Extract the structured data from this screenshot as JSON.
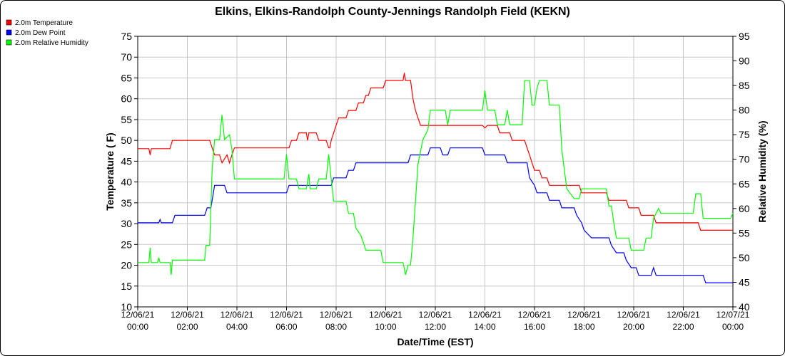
{
  "chart_data": {
    "type": "line",
    "title": "Elkins, Elkins-Randolph County-Jennings Randolph Field (KEKN)",
    "xlabel": "Date/Time (EST)",
    "ylabel_left": "Temperature ( F)",
    "ylabel_right": "Relative Humidity (%)",
    "ylim_left": [
      10,
      75
    ],
    "ylim_right": [
      40,
      95
    ],
    "yticks_left": [
      "10",
      "15",
      "20",
      "25",
      "30",
      "35",
      "40",
      "45",
      "50",
      "55",
      "60",
      "65",
      "70",
      "75"
    ],
    "yticks_right": [
      "40",
      "45",
      "50",
      "55",
      "60",
      "65",
      "70",
      "75",
      "80",
      "85",
      "90",
      "95"
    ],
    "x_range_hours": [
      0,
      24
    ],
    "x_ticks": [
      {
        "hour": 0,
        "date": "12/06/21",
        "time": "00:00"
      },
      {
        "hour": 2,
        "date": "12/06/21",
        "time": "02:00"
      },
      {
        "hour": 4,
        "date": "12/06/21",
        "time": "04:00"
      },
      {
        "hour": 6,
        "date": "12/06/21",
        "time": "06:00"
      },
      {
        "hour": 8,
        "date": "12/06/21",
        "time": "08:00"
      },
      {
        "hour": 10,
        "date": "12/06/21",
        "time": "10:00"
      },
      {
        "hour": 12,
        "date": "12/06/21",
        "time": "12:00"
      },
      {
        "hour": 14,
        "date": "12/06/21",
        "time": "14:00"
      },
      {
        "hour": 16,
        "date": "12/06/21",
        "time": "16:00"
      },
      {
        "hour": 18,
        "date": "12/06/21",
        "time": "18:00"
      },
      {
        "hour": 20,
        "date": "12/06/21",
        "time": "20:00"
      },
      {
        "hour": 22,
        "date": "12/06/21",
        "time": "22:00"
      },
      {
        "hour": 24,
        "date": "12/07/21",
        "time": "00:00"
      }
    ],
    "grid": true,
    "legend_position": "top-left",
    "series": [
      {
        "name": "2.0m Temperature",
        "color": "#ff0000",
        "axis": "left",
        "points": [
          [
            0,
            48
          ],
          [
            0.45,
            48
          ],
          [
            0.5,
            46.5
          ],
          [
            0.55,
            48
          ],
          [
            1.3,
            48
          ],
          [
            1.4,
            50
          ],
          [
            2.9,
            50
          ],
          [
            3.1,
            46.5
          ],
          [
            3.3,
            46.5
          ],
          [
            3.4,
            44.6
          ],
          [
            3.6,
            46.5
          ],
          [
            3.7,
            44.6
          ],
          [
            3.8,
            46.5
          ],
          [
            3.9,
            48.2
          ],
          [
            6.1,
            48.2
          ],
          [
            6.2,
            50
          ],
          [
            6.4,
            50
          ],
          [
            6.5,
            51.8
          ],
          [
            6.8,
            51.8
          ],
          [
            6.85,
            50
          ],
          [
            6.9,
            51.8
          ],
          [
            7.2,
            51.8
          ],
          [
            7.3,
            50
          ],
          [
            7.5,
            50
          ],
          [
            7.6,
            50
          ],
          [
            7.7,
            48.2
          ],
          [
            7.75,
            48.2
          ],
          [
            7.8,
            50
          ],
          [
            8.0,
            53.6
          ],
          [
            8.1,
            55.4
          ],
          [
            8.4,
            55.4
          ],
          [
            8.5,
            57.2
          ],
          [
            8.8,
            57.2
          ],
          [
            8.9,
            59
          ],
          [
            9.1,
            59
          ],
          [
            9.2,
            60.8
          ],
          [
            9.3,
            60.8
          ],
          [
            9.4,
            62.6
          ],
          [
            9.9,
            62.6
          ],
          [
            10.0,
            64.4
          ],
          [
            10.7,
            64.4
          ],
          [
            10.75,
            66.2
          ],
          [
            10.8,
            64.4
          ],
          [
            11.0,
            64.4
          ],
          [
            11.1,
            60
          ],
          [
            11.2,
            57.2
          ],
          [
            11.3,
            55.4
          ],
          [
            11.4,
            53.6
          ],
          [
            13.9,
            53.6
          ],
          [
            14.0,
            53
          ],
          [
            14.1,
            53.6
          ],
          [
            14.5,
            53.6
          ],
          [
            14.6,
            51.8
          ],
          [
            15.0,
            51.8
          ],
          [
            15.1,
            50
          ],
          [
            15.6,
            50
          ],
          [
            15.7,
            48.2
          ],
          [
            15.8,
            46.5
          ],
          [
            15.9,
            44.6
          ],
          [
            16.0,
            42.8
          ],
          [
            16.2,
            42.8
          ],
          [
            16.3,
            41
          ],
          [
            16.5,
            41
          ],
          [
            16.6,
            39.2
          ],
          [
            17.8,
            39.2
          ],
          [
            17.9,
            37.4
          ],
          [
            18.9,
            37.4
          ],
          [
            19.0,
            35.6
          ],
          [
            19.7,
            35.6
          ],
          [
            19.8,
            33.8
          ],
          [
            20.2,
            33.8
          ],
          [
            20.3,
            32
          ],
          [
            20.8,
            32
          ],
          [
            20.9,
            30.2
          ],
          [
            22.6,
            30.2
          ],
          [
            22.7,
            28.4
          ],
          [
            24,
            28.4
          ]
        ]
      },
      {
        "name": "2.0m Dew Point",
        "color": "#0000ff",
        "axis": "left",
        "points": [
          [
            0,
            30.2
          ],
          [
            0.85,
            30.2
          ],
          [
            0.9,
            31
          ],
          [
            0.95,
            30.2
          ],
          [
            1.4,
            30.2
          ],
          [
            1.5,
            32
          ],
          [
            2.7,
            32
          ],
          [
            2.8,
            33.8
          ],
          [
            2.95,
            33.8
          ],
          [
            3.0,
            35.6
          ],
          [
            3.1,
            39.2
          ],
          [
            3.5,
            39.2
          ],
          [
            3.6,
            37.4
          ],
          [
            6.0,
            37.4
          ],
          [
            6.1,
            39.2
          ],
          [
            7.8,
            39.2
          ],
          [
            7.9,
            41
          ],
          [
            8.4,
            41
          ],
          [
            8.5,
            42.8
          ],
          [
            8.7,
            42.8
          ],
          [
            8.8,
            44.6
          ],
          [
            10.9,
            44.6
          ],
          [
            11.0,
            46.5
          ],
          [
            11.7,
            46.5
          ],
          [
            11.8,
            48.2
          ],
          [
            12.2,
            48.2
          ],
          [
            12.3,
            46.5
          ],
          [
            12.5,
            46.5
          ],
          [
            12.6,
            48.2
          ],
          [
            13.9,
            48.2
          ],
          [
            14.0,
            46.5
          ],
          [
            14.8,
            46.5
          ],
          [
            14.9,
            44.6
          ],
          [
            15.7,
            44.6
          ],
          [
            15.8,
            41
          ],
          [
            16.0,
            39.2
          ],
          [
            16.1,
            37.4
          ],
          [
            16.5,
            37.4
          ],
          [
            16.6,
            35.6
          ],
          [
            17.0,
            35.6
          ],
          [
            17.1,
            33.8
          ],
          [
            17.6,
            33.8
          ],
          [
            17.7,
            32
          ],
          [
            17.9,
            30.2
          ],
          [
            18.0,
            28.4
          ],
          [
            18.3,
            26.6
          ],
          [
            19.0,
            26.6
          ],
          [
            19.1,
            24.8
          ],
          [
            19.3,
            23
          ],
          [
            19.6,
            23
          ],
          [
            19.7,
            21.2
          ],
          [
            19.9,
            19.4
          ],
          [
            20.1,
            19.4
          ],
          [
            20.2,
            17.6
          ],
          [
            20.7,
            17.6
          ],
          [
            20.8,
            19.4
          ],
          [
            20.9,
            17.6
          ],
          [
            22.8,
            17.6
          ],
          [
            22.9,
            15.8
          ],
          [
            24,
            15.8
          ]
        ]
      },
      {
        "name": "2.0m Relative Humidity",
        "color": "#00ff00",
        "axis": "right",
        "points": [
          [
            0,
            49
          ],
          [
            0.45,
            49
          ],
          [
            0.5,
            52
          ],
          [
            0.55,
            49
          ],
          [
            0.8,
            49
          ],
          [
            0.85,
            50
          ],
          [
            0.9,
            49
          ],
          [
            1.3,
            49
          ],
          [
            1.35,
            46.5
          ],
          [
            1.4,
            49.5
          ],
          [
            2.7,
            49.5
          ],
          [
            2.75,
            52.5
          ],
          [
            2.9,
            52.5
          ],
          [
            3.0,
            68
          ],
          [
            3.1,
            74
          ],
          [
            3.3,
            74
          ],
          [
            3.4,
            79
          ],
          [
            3.5,
            74
          ],
          [
            3.7,
            75
          ],
          [
            3.8,
            72
          ],
          [
            3.9,
            66
          ],
          [
            5.9,
            66
          ],
          [
            6.0,
            71
          ],
          [
            6.1,
            66
          ],
          [
            6.4,
            66
          ],
          [
            6.5,
            64
          ],
          [
            6.8,
            64
          ],
          [
            6.9,
            67
          ],
          [
            6.95,
            64
          ],
          [
            7.2,
            64
          ],
          [
            7.3,
            66
          ],
          [
            7.6,
            66
          ],
          [
            7.7,
            71
          ],
          [
            7.8,
            66
          ],
          [
            7.9,
            61.5
          ],
          [
            8.4,
            61.5
          ],
          [
            8.5,
            59
          ],
          [
            8.7,
            59
          ],
          [
            8.8,
            56
          ],
          [
            9.0,
            54.5
          ],
          [
            9.2,
            51.5
          ],
          [
            9.8,
            51.5
          ],
          [
            9.9,
            49
          ],
          [
            10.7,
            49
          ],
          [
            10.8,
            46.5
          ],
          [
            10.9,
            48.5
          ],
          [
            11.0,
            48.5
          ],
          [
            11.1,
            54
          ],
          [
            11.3,
            69
          ],
          [
            11.5,
            74
          ],
          [
            11.7,
            76
          ],
          [
            11.8,
            80
          ],
          [
            12.4,
            80
          ],
          [
            12.5,
            77
          ],
          [
            12.6,
            80
          ],
          [
            13.9,
            80
          ],
          [
            14.0,
            84
          ],
          [
            14.1,
            80
          ],
          [
            14.4,
            80
          ],
          [
            14.5,
            77
          ],
          [
            14.8,
            77
          ],
          [
            14.9,
            80
          ],
          [
            15.0,
            77
          ],
          [
            15.5,
            77
          ],
          [
            15.6,
            86
          ],
          [
            15.8,
            86
          ],
          [
            15.9,
            81
          ],
          [
            16.0,
            81
          ],
          [
            16.1,
            84.5
          ],
          [
            16.2,
            86
          ],
          [
            16.5,
            86
          ],
          [
            16.6,
            81
          ],
          [
            17.0,
            81
          ],
          [
            17.1,
            72
          ],
          [
            17.3,
            64
          ],
          [
            17.6,
            62
          ],
          [
            17.8,
            62
          ],
          [
            17.9,
            64
          ],
          [
            18.9,
            64
          ],
          [
            19.0,
            60.5
          ],
          [
            19.1,
            60.5
          ],
          [
            19.2,
            57
          ],
          [
            19.3,
            54
          ],
          [
            19.8,
            54
          ],
          [
            19.9,
            51.5
          ],
          [
            20.4,
            51.5
          ],
          [
            20.5,
            54
          ],
          [
            20.7,
            54
          ],
          [
            20.8,
            58
          ],
          [
            21.0,
            60
          ],
          [
            21.1,
            59
          ],
          [
            22.4,
            59
          ],
          [
            22.5,
            63
          ],
          [
            22.7,
            63
          ],
          [
            22.8,
            58
          ],
          [
            23.9,
            58
          ],
          [
            24,
            59
          ]
        ]
      }
    ]
  }
}
